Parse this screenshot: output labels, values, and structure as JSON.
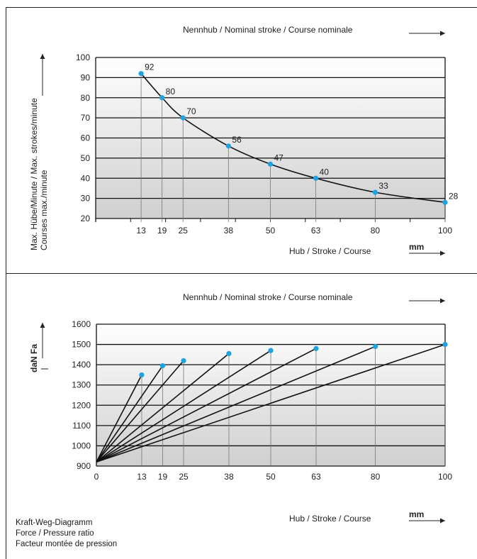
{
  "top_section": {
    "nominal_label": "Nennhub  /  Nominal stroke  /  Course nominale",
    "x_label": "Hub  /  Stroke  /  Course",
    "x_unit": "mm",
    "y_label_line1": "Max. Hübe/Minute / Max. strokes/minute",
    "y_label_line2": "Courses max./minute"
  },
  "bottom_section": {
    "nominal_label": "Nennhub  /  Nominal stroke  /  Course nominale",
    "x_label": "Hub  /  Stroke  /  Course",
    "x_unit": "mm",
    "y_label": "daN  Fa"
  },
  "caption": {
    "line1": "Kraft-Weg-Diagramm",
    "line2": "Force / Pressure ratio",
    "line3": "Facteur montée de pression"
  },
  "colors": {
    "point": "#1ea3e0",
    "gradient_top": "#ffffff",
    "gradient_bottom": "#cfcfcf"
  },
  "chart_data": [
    {
      "type": "line",
      "title": "",
      "xlabel": "Hub  /  Stroke  /  Course",
      "ylabel": "Max. Hübe/Minute / Max. strokes/minute / Courses max./minute",
      "x": [
        13,
        19,
        25,
        38,
        50,
        63,
        80,
        100
      ],
      "values": [
        92,
        80,
        70,
        56,
        47,
        40,
        33,
        28
      ],
      "data_labels": [
        "92",
        "80",
        "70",
        "56",
        "47",
        "40",
        "33",
        "28"
      ],
      "x_ticks": [
        "13",
        "19",
        "25",
        "38",
        "50",
        "63",
        "80",
        "100"
      ],
      "y_ticks": [
        "100",
        "90",
        "80",
        "70",
        "60",
        "50",
        "40",
        "30",
        "20"
      ],
      "xlim": [
        0,
        100
      ],
      "ylim": [
        20,
        100
      ],
      "grid": true
    },
    {
      "type": "line",
      "title": "",
      "xlabel": "Hub  /  Stroke  /  Course",
      "ylabel": "daN  Fa",
      "origin": [
        0,
        920
      ],
      "endpoints": [
        {
          "x": 13,
          "y": 1350
        },
        {
          "x": 19,
          "y": 1395
        },
        {
          "x": 25,
          "y": 1420
        },
        {
          "x": 38,
          "y": 1455
        },
        {
          "x": 50,
          "y": 1470
        },
        {
          "x": 63,
          "y": 1480
        },
        {
          "x": 80,
          "y": 1490
        },
        {
          "x": 100,
          "y": 1500
        }
      ],
      "x_ticks": [
        "0",
        "13",
        "19",
        "25",
        "38",
        "50",
        "63",
        "80",
        "100"
      ],
      "y_ticks": [
        "1600",
        "1500",
        "1400",
        "1300",
        "1200",
        "1100",
        "1000",
        "900"
      ],
      "xlim": [
        0,
        100
      ],
      "ylim": [
        900,
        1600
      ],
      "grid": true
    }
  ]
}
